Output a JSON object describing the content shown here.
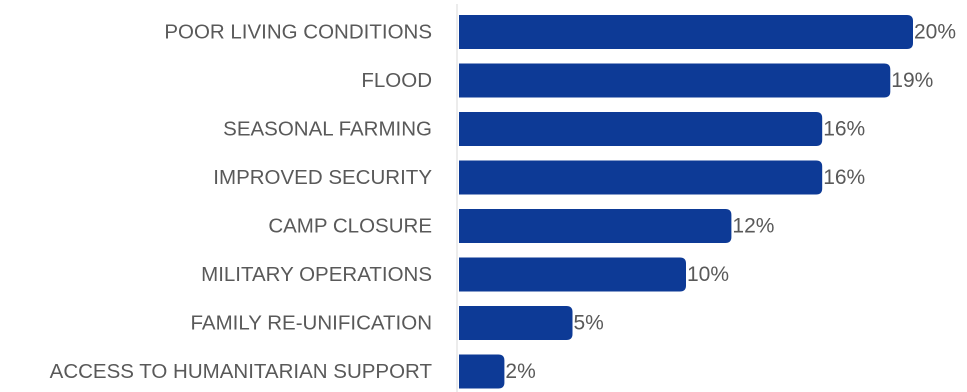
{
  "chart_data": {
    "type": "bar",
    "orientation": "horizontal",
    "categories": [
      "POOR LIVING CONDITIONS",
      "FLOOD",
      "SEASONAL FARMING",
      "IMPROVED SECURITY",
      "CAMP CLOSURE",
      "MILITARY OPERATIONS",
      "FAMILY RE-UNIFICATION",
      "ACCESS TO HUMANITARIAN SUPPORT"
    ],
    "values": [
      20,
      19,
      16,
      16,
      12,
      10,
      5,
      2
    ],
    "value_labels": [
      "20%",
      "19%",
      "16%",
      "16%",
      "12%",
      "10%",
      "5%",
      "2%"
    ],
    "title": "",
    "xlabel": "",
    "ylabel": "",
    "xlim": [
      0,
      20
    ],
    "grid": false,
    "legend": "none",
    "colors": {
      "bar": "#0d3a96",
      "text": "#595959",
      "axis": "#d9d9d9"
    }
  }
}
